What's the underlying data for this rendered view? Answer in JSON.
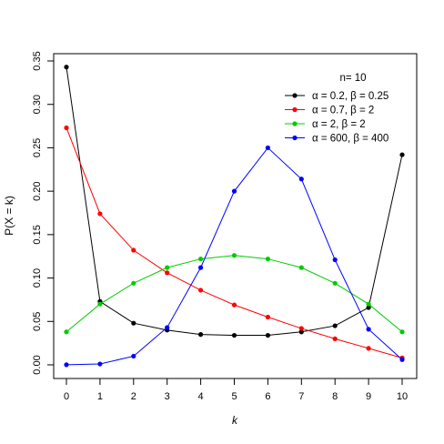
{
  "chart_data": {
    "type": "line",
    "title": "n= 10",
    "xlabel": "k",
    "ylabel": "P(X = k)",
    "x": [
      0,
      1,
      2,
      3,
      4,
      5,
      6,
      7,
      8,
      9,
      10
    ],
    "xlim": [
      0,
      10
    ],
    "ylim": [
      0,
      0.35
    ],
    "x_ticks": [
      "0",
      "1",
      "2",
      "3",
      "4",
      "5",
      "6",
      "7",
      "8",
      "9",
      "10"
    ],
    "y_ticks": [
      "0.00",
      "0.05",
      "0.10",
      "0.15",
      "0.20",
      "0.25",
      "0.30",
      "0.35"
    ],
    "grid": false,
    "legend_position": "top-right",
    "series": [
      {
        "name": "α = 0.2, β = 0.25",
        "color": "#000000",
        "values": [
          0.343,
          0.073,
          0.048,
          0.04,
          0.035,
          0.034,
          0.034,
          0.038,
          0.045,
          0.066,
          0.242
        ]
      },
      {
        "name": "α = 0.7, β = 2",
        "color": "#ff0000",
        "values": [
          0.273,
          0.174,
          0.132,
          0.106,
          0.086,
          0.069,
          0.055,
          0.042,
          0.03,
          0.019,
          0.008
        ]
      },
      {
        "name": "α = 2, β = 2",
        "color": "#00cc00",
        "values": [
          0.038,
          0.07,
          0.094,
          0.112,
          0.122,
          0.126,
          0.122,
          0.112,
          0.094,
          0.07,
          0.038
        ]
      },
      {
        "name": "α = 600, β = 400",
        "color": "#0000ff",
        "values": [
          0.0001,
          0.001,
          0.01,
          0.043,
          0.112,
          0.2,
          0.25,
          0.214,
          0.121,
          0.041,
          0.006
        ]
      }
    ]
  }
}
